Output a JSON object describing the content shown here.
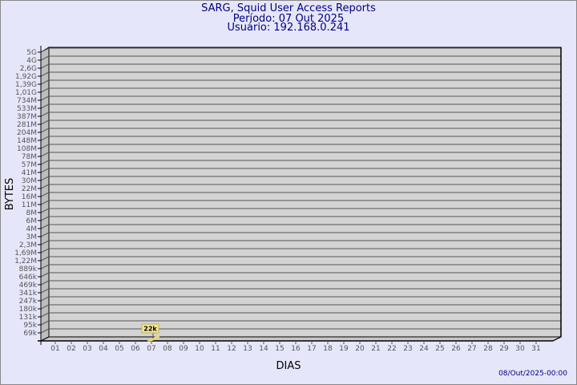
{
  "header": {
    "title": "SARG, Squid User Access Reports",
    "period": "Período: 07 Out 2025",
    "user": "Usuário: 192.168.0.241"
  },
  "footer": {
    "timestamp": "08/Out/2025-00:00"
  },
  "colors": {
    "title": "#000080",
    "background": "#e6e6fa",
    "plot": "#d3d3d3",
    "bar": "#f5e68c",
    "label_box": "#f0e8a0"
  },
  "chart_data": {
    "type": "bar",
    "xlabel": "DIAS",
    "ylabel": "BYTES",
    "grid": true,
    "categories": [
      "01",
      "02",
      "03",
      "04",
      "05",
      "06",
      "07",
      "08",
      "09",
      "10",
      "11",
      "12",
      "13",
      "14",
      "15",
      "16",
      "17",
      "18",
      "19",
      "20",
      "21",
      "22",
      "23",
      "24",
      "25",
      "26",
      "27",
      "28",
      "29",
      "30",
      "31"
    ],
    "y_tick_labels": [
      "5G",
      "4G",
      "2,6G",
      "1,92G",
      "1,39G",
      "1,01G",
      "734M",
      "533M",
      "387M",
      "281M",
      "204M",
      "148M",
      "108M",
      "78M",
      "57M",
      "41M",
      "30M",
      "22M",
      "16M",
      "11M",
      "8M",
      "6M",
      "4M",
      "3M",
      "2,3M",
      "1,69M",
      "1,22M",
      "889k",
      "646k",
      "469k",
      "341k",
      "247k",
      "180k",
      "131k",
      "95k",
      "69k"
    ],
    "series": [
      {
        "points": [
          {
            "x": "07",
            "value": 22000,
            "label": "22k"
          }
        ]
      }
    ]
  }
}
